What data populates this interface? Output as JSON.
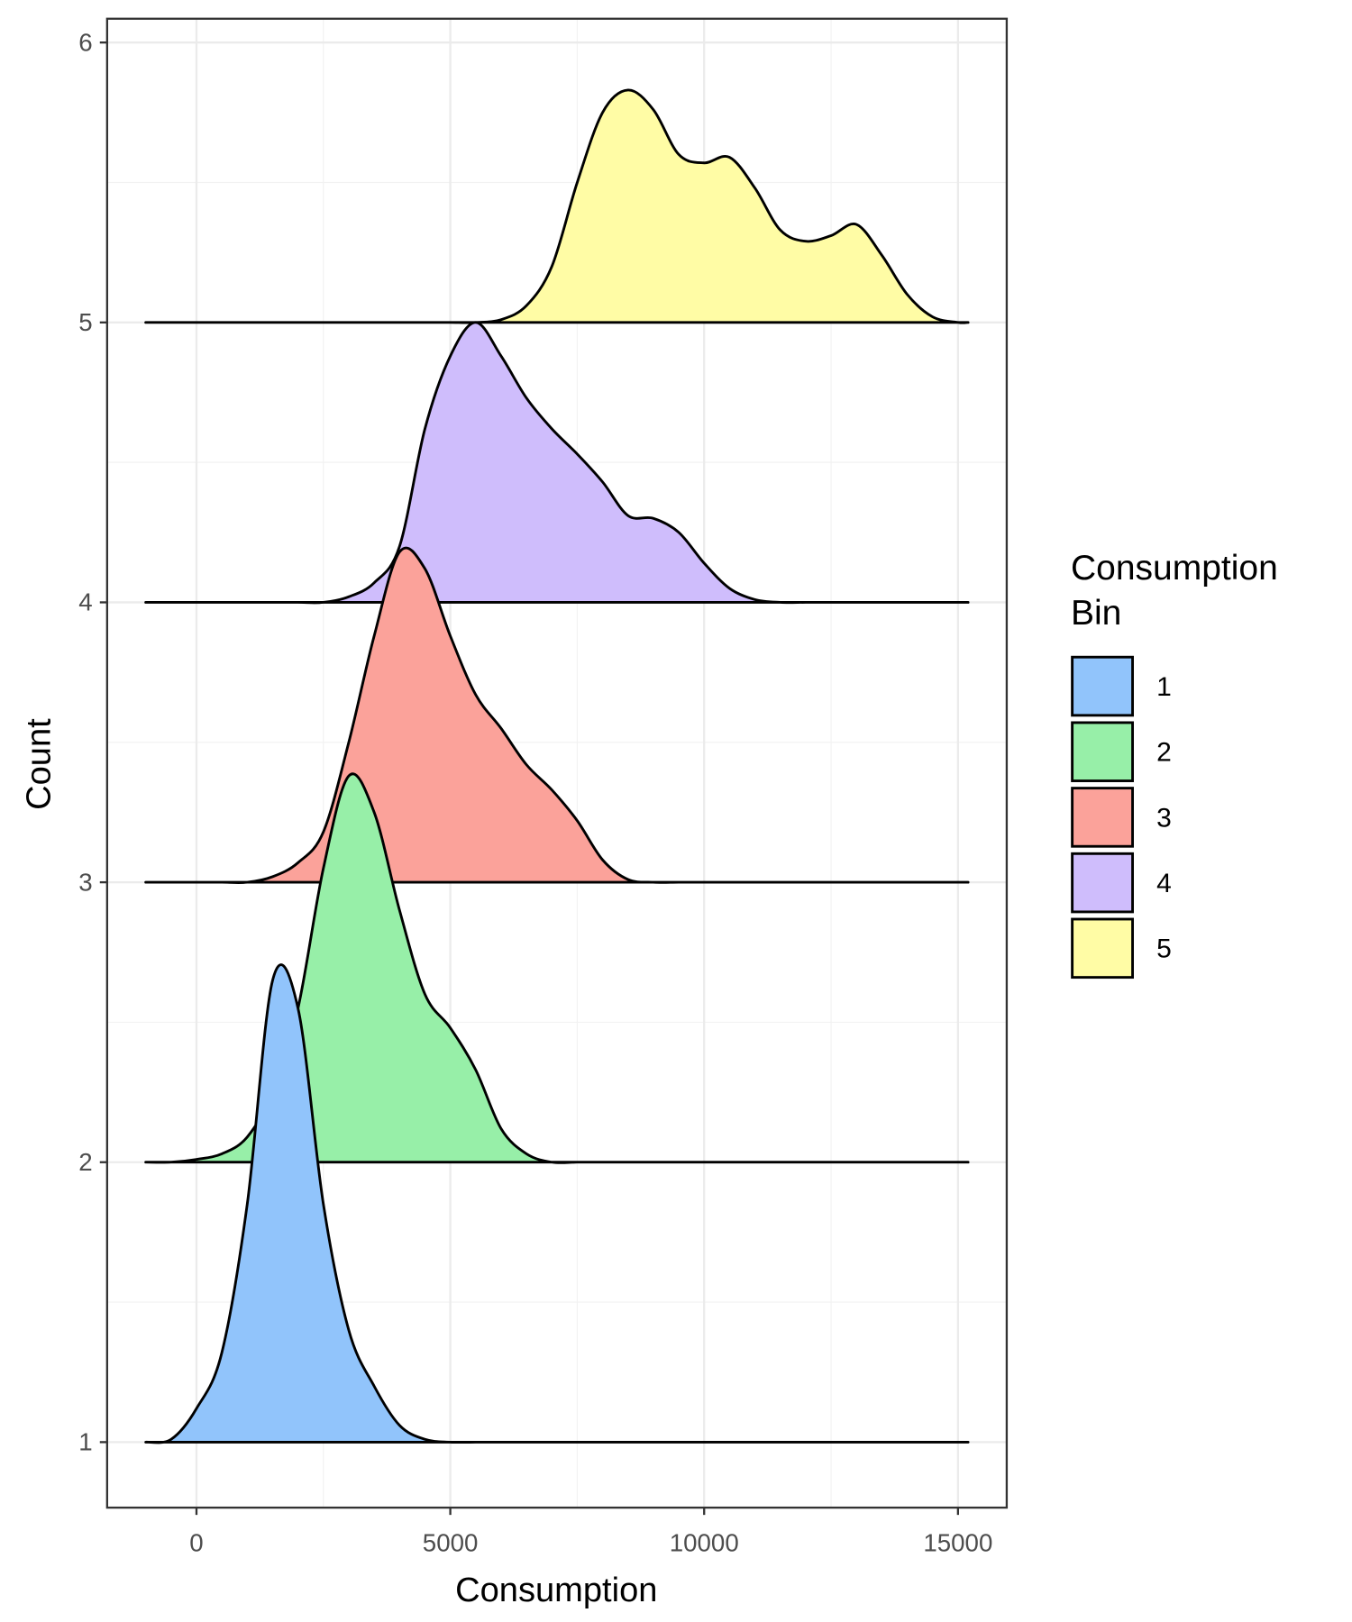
{
  "chart_data": {
    "type": "ridgeline",
    "x_label": "Consumption",
    "y_label": "Count",
    "legend_title": "Consumption\nBin",
    "xlim": [
      -1760,
      15960
    ],
    "ylim": [
      0.766,
      6.085
    ],
    "xticks": [
      0,
      5000,
      10000,
      15000
    ],
    "yticks": [
      1,
      2,
      3,
      4,
      5,
      6
    ],
    "grid": true,
    "x": [
      -1000,
      -500,
      0,
      500,
      1000,
      1500,
      2000,
      2500,
      3000,
      3500,
      4000,
      4500,
      5000,
      5500,
      6000,
      6500,
      7000,
      7500,
      8000,
      8500,
      9000,
      9500,
      10000,
      10500,
      11000,
      11500,
      12000,
      12500,
      13000,
      13500,
      14000,
      14500,
      15000,
      15200
    ],
    "series": [
      {
        "name": "1",
        "color": "#91c4fb",
        "baseline": 1,
        "values": [
          1,
          1.01,
          1.12,
          1.32,
          1.85,
          2.65,
          2.55,
          1.85,
          1.4,
          1.2,
          1.06,
          1.01,
          1,
          1,
          1,
          1,
          1,
          1,
          1,
          1,
          1,
          1,
          1,
          1,
          1,
          1,
          1,
          1,
          1,
          1,
          1,
          1,
          1,
          1
        ]
      },
      {
        "name": "2",
        "color": "#97efa8",
        "baseline": 2,
        "values": [
          2,
          2,
          2.01,
          2.03,
          2.09,
          2.25,
          2.55,
          3.05,
          3.38,
          3.25,
          2.9,
          2.6,
          2.48,
          2.33,
          2.12,
          2.03,
          2,
          2,
          2,
          2,
          2,
          2,
          2,
          2,
          2,
          2,
          2,
          2,
          2,
          2,
          2,
          2,
          2,
          2
        ]
      },
      {
        "name": "3",
        "color": "#fba29a",
        "baseline": 3,
        "values": [
          3,
          3,
          3,
          3,
          3,
          3.02,
          3.07,
          3.18,
          3.5,
          3.88,
          4.18,
          4.12,
          3.88,
          3.67,
          3.55,
          3.42,
          3.33,
          3.22,
          3.08,
          3.01,
          3,
          3,
          3,
          3,
          3,
          3,
          3,
          3,
          3,
          3,
          3,
          3,
          3,
          3
        ]
      },
      {
        "name": "4",
        "color": "#cfbdfc",
        "baseline": 4,
        "values": [
          4,
          4,
          4,
          4,
          4,
          4,
          4,
          4,
          4.02,
          4.07,
          4.2,
          4.62,
          4.88,
          5.0,
          4.88,
          4.73,
          4.62,
          4.53,
          4.43,
          4.31,
          4.3,
          4.25,
          4.14,
          4.05,
          4.01,
          4,
          4,
          4,
          4,
          4,
          4,
          4,
          4,
          4
        ]
      },
      {
        "name": "5",
        "color": "#fffca5",
        "baseline": 5,
        "values": [
          5,
          5,
          5,
          5,
          5,
          5,
          5,
          5,
          5,
          5,
          5,
          5,
          5,
          5,
          5.01,
          5.06,
          5.2,
          5.5,
          5.75,
          5.83,
          5.76,
          5.6,
          5.57,
          5.59,
          5.48,
          5.33,
          5.29,
          5.31,
          5.35,
          5.24,
          5.1,
          5.02,
          5.0,
          5.0
        ]
      }
    ]
  }
}
